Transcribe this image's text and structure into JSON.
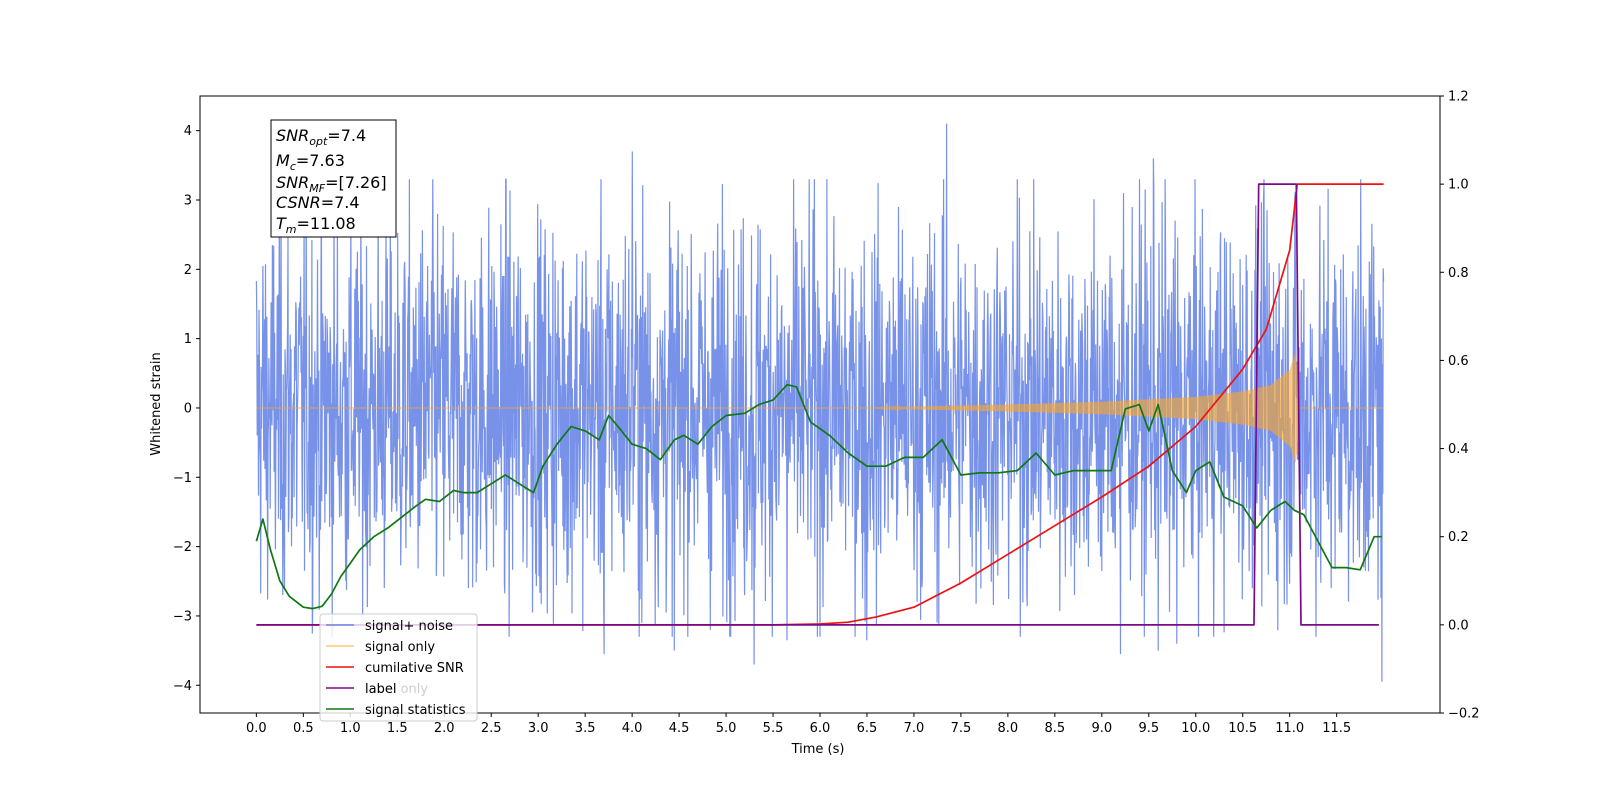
{
  "chart_data": {
    "type": "line",
    "xlabel": "Time (s)",
    "ylabel": "Whitened strain",
    "x_ticks": [
      "0.0",
      "0.5",
      "1.0",
      "1.5",
      "2.0",
      "2.5",
      "3.0",
      "3.5",
      "4.0",
      "4.5",
      "5.0",
      "5.5",
      "6.0",
      "6.5",
      "7.0",
      "7.5",
      "8.0",
      "8.5",
      "9.0",
      "9.5",
      "10.0",
      "10.5",
      "11.0",
      "11.5"
    ],
    "xlim": [
      -0.6,
      12.6
    ],
    "ylim_left": [
      -4.4,
      4.5
    ],
    "ylim_right": [
      -0.2,
      1.2
    ],
    "y_ticks_left": [
      "4",
      "3",
      "2",
      "1",
      "0",
      "−1",
      "−2",
      "−3",
      "−4"
    ],
    "y_ticks_right": [
      "1.2",
      "1.0",
      "0.8",
      "0.6",
      "0.4",
      "0.2",
      "0.0",
      "−0.2"
    ],
    "info_box": {
      "snr_opt": "=7.4",
      "mc": "=7.63",
      "snr_mf": "=[7.26]",
      "csnr": "=7.4",
      "tm": "=11.08"
    },
    "legend": {
      "signal_noise": "signal+ noise",
      "signal_only": "signal only",
      "cumulative_snr": "cumilative SNR",
      "label": "label",
      "signal_statistics": "signal statistics",
      "hidden_entry": "label only"
    },
    "series": [
      {
        "name": "signal+ noise",
        "axis": "left",
        "color": "#4a6ee0",
        "style": "noise",
        "x_range": [
          0.0,
          12.0
        ],
        "envelope_typical": 2.5,
        "spikes": [
          {
            "x": 4.0,
            "y": 3.7
          },
          {
            "x": 4.45,
            "y": 3.9
          },
          {
            "x": 7.35,
            "y": 4.1
          },
          {
            "x": 9.55,
            "y": 3.6
          },
          {
            "x": 3.7,
            "y": -3.55
          },
          {
            "x": 4.45,
            "y": -3.5
          },
          {
            "x": 5.3,
            "y": -3.7
          },
          {
            "x": 5.65,
            "y": -3.35
          },
          {
            "x": 6.5,
            "y": -3.35
          },
          {
            "x": 9.2,
            "y": -3.55
          },
          {
            "x": 9.6,
            "y": -3.5
          },
          {
            "x": 9.8,
            "y": -3.4
          },
          {
            "x": 11.98,
            "y": -3.95
          }
        ]
      },
      {
        "name": "signal only",
        "axis": "left",
        "color": "#ffa726",
        "style": "chirp",
        "x": [
          0.0,
          6.5,
          7.0,
          8.0,
          9.0,
          10.0,
          10.5,
          10.8,
          11.0,
          11.06,
          11.08,
          11.1,
          12.0
        ],
        "amplitude": [
          0.0,
          0.0,
          0.02,
          0.05,
          0.09,
          0.16,
          0.24,
          0.33,
          0.55,
          0.8,
          0.6,
          0.0,
          0.0
        ]
      },
      {
        "name": "cumilative SNR",
        "axis": "right",
        "color": "#ee1111",
        "x": [
          0.0,
          5.5,
          6.0,
          6.3,
          6.6,
          7.0,
          7.5,
          8.0,
          8.5,
          9.0,
          9.5,
          10.0,
          10.5,
          10.75,
          11.0,
          11.08,
          12.0
        ],
        "values": [
          0.0,
          0.0,
          0.002,
          0.006,
          0.018,
          0.04,
          0.095,
          0.16,
          0.225,
          0.29,
          0.36,
          0.45,
          0.58,
          0.67,
          0.85,
          1.0,
          1.0
        ]
      },
      {
        "name": "label",
        "axis": "right",
        "color": "#7b0a87",
        "x": [
          0.0,
          10.62,
          10.67,
          11.07,
          11.12,
          11.95
        ],
        "values": [
          0.0,
          0.0,
          1.0,
          1.0,
          0.0,
          0.0
        ]
      },
      {
        "name": "signal statistics",
        "axis": "right",
        "color": "#117711",
        "x": [
          0.0,
          0.07,
          0.15,
          0.25,
          0.35,
          0.5,
          0.6,
          0.7,
          0.8,
          0.9,
          1.0,
          1.1,
          1.25,
          1.4,
          1.55,
          1.7,
          1.8,
          1.95,
          2.1,
          2.2,
          2.35,
          2.5,
          2.65,
          2.8,
          2.95,
          3.05,
          3.2,
          3.35,
          3.5,
          3.65,
          3.75,
          3.85,
          4.0,
          4.15,
          4.3,
          4.45,
          4.55,
          4.7,
          4.85,
          5.0,
          5.2,
          5.35,
          5.5,
          5.65,
          5.75,
          5.9,
          6.1,
          6.3,
          6.5,
          6.7,
          6.9,
          7.1,
          7.3,
          7.5,
          7.7,
          7.9,
          8.1,
          8.3,
          8.5,
          8.7,
          8.9,
          9.1,
          9.25,
          9.4,
          9.5,
          9.6,
          9.75,
          9.9,
          10.0,
          10.15,
          10.3,
          10.5,
          10.65,
          10.8,
          10.95,
          11.05,
          11.15,
          11.3,
          11.45,
          11.6,
          11.75,
          11.9,
          11.98
        ],
        "values": [
          0.19,
          0.24,
          0.17,
          0.1,
          0.065,
          0.04,
          0.037,
          0.042,
          0.07,
          0.11,
          0.14,
          0.17,
          0.2,
          0.22,
          0.245,
          0.27,
          0.285,
          0.28,
          0.305,
          0.3,
          0.3,
          0.32,
          0.34,
          0.32,
          0.3,
          0.36,
          0.41,
          0.45,
          0.44,
          0.42,
          0.475,
          0.45,
          0.41,
          0.4,
          0.375,
          0.42,
          0.43,
          0.41,
          0.45,
          0.475,
          0.48,
          0.5,
          0.51,
          0.545,
          0.54,
          0.46,
          0.43,
          0.39,
          0.36,
          0.36,
          0.38,
          0.38,
          0.42,
          0.34,
          0.345,
          0.345,
          0.35,
          0.39,
          0.34,
          0.35,
          0.35,
          0.35,
          0.49,
          0.5,
          0.44,
          0.5,
          0.35,
          0.3,
          0.35,
          0.37,
          0.29,
          0.27,
          0.22,
          0.26,
          0.28,
          0.26,
          0.25,
          0.19,
          0.13,
          0.13,
          0.125,
          0.2,
          0.2
        ]
      }
    ]
  }
}
